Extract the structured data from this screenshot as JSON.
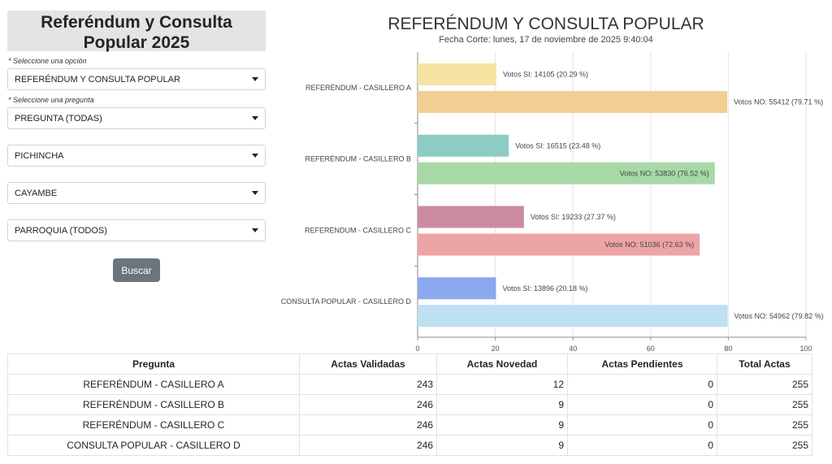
{
  "sidebar": {
    "title": "Referéndum y Consulta Popular 2025",
    "option_hint": "* Seleccione una opción",
    "option_value": "REFERÉNDUM Y CONSULTA POPULAR",
    "question_hint": "* Seleccione una pregunta",
    "question_value": "PREGUNTA (TODAS)",
    "province_value": "PICHINCHA",
    "canton_value": "CAYAMBE",
    "parish_value": "PARROQUIA (TODOS)",
    "search_label": "Buscar"
  },
  "chart_data": {
    "type": "bar",
    "title": "REFERÉNDUM Y CONSULTA POPULAR",
    "subtitle": "Fecha Corte: lunes, 17 de noviembre de 2025 9:40:04",
    "categories": [
      "REFERÉNDUM - CASILLERO A",
      "REFERÉNDUM - CASILLERO B",
      "REFERÉNDUM - CASILLERO C",
      "CONSULTA POPULAR - CASILLERO D"
    ],
    "orientation": "horizontal",
    "xlim": [
      0,
      100
    ],
    "xticks": [
      0,
      20,
      40,
      60,
      80,
      100
    ],
    "grid": true,
    "bars": [
      {
        "category": 0,
        "kind": "si",
        "value": 20.29,
        "label": "Votos SI: 14105 (20.29 %)",
        "color": "#f7e4a2"
      },
      {
        "category": 0,
        "kind": "no",
        "value": 79.71,
        "label": "Votos NO: 55412 (79.71 %)",
        "color": "#f1cf93"
      },
      {
        "category": 1,
        "kind": "si",
        "value": 23.48,
        "label": "Votos SI: 16515 (23.48 %)",
        "color": "#8dccc3"
      },
      {
        "category": 1,
        "kind": "no",
        "value": 76.52,
        "label": "Votos NO: 53830 (76.52 %)",
        "color": "#a7d9a7"
      },
      {
        "category": 2,
        "kind": "si",
        "value": 27.37,
        "label": "Votos SI: 19233 (27.37 %)",
        "color": "#cc8aa2"
      },
      {
        "category": 2,
        "kind": "no",
        "value": 72.63,
        "label": "Votos NO: 51036 (72.63 %)",
        "color": "#eda4a4"
      },
      {
        "category": 3,
        "kind": "si",
        "value": 20.18,
        "label": "Votos SI: 13896 (20.18 %)",
        "color": "#8ca8ee"
      },
      {
        "category": 3,
        "kind": "no",
        "value": 79.82,
        "label": "Votos NO: 54962 (79.82 %)",
        "color": "#bde0f2"
      }
    ]
  },
  "table": {
    "headers": [
      "Pregunta",
      "Actas Validadas",
      "Actas Novedad",
      "Actas Pendientes",
      "Total Actas"
    ],
    "rows": [
      [
        "REFERÉNDUM - CASILLERO A",
        "243",
        "12",
        "0",
        "255"
      ],
      [
        "REFERÉNDUM - CASILLERO B",
        "246",
        "9",
        "0",
        "255"
      ],
      [
        "REFERÉNDUM - CASILLERO C",
        "246",
        "9",
        "0",
        "255"
      ],
      [
        "CONSULTA POPULAR - CASILLERO D",
        "246",
        "9",
        "0",
        "255"
      ]
    ]
  }
}
